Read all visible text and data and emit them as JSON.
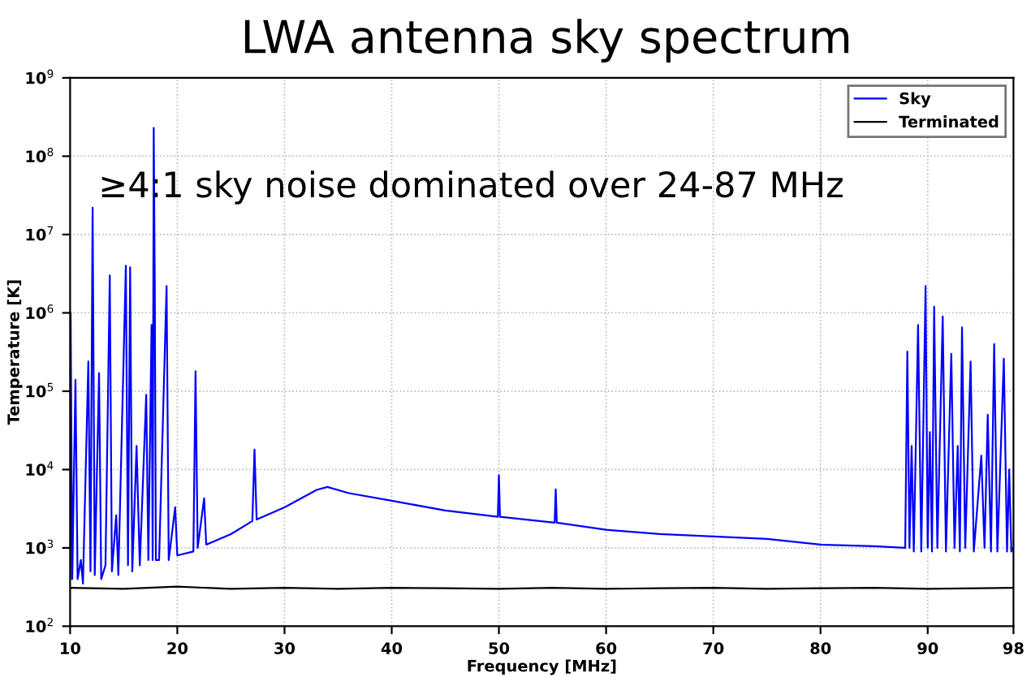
{
  "chart_data": {
    "type": "line",
    "title": "LWA antenna sky spectrum",
    "xlabel": "Frequency [MHz]",
    "ylabel": "Temperature [K]",
    "annotations": [
      "≥4:1 sky noise dominated over 24-87 MHz"
    ],
    "log": "y",
    "xlim": [
      10,
      98
    ],
    "xticks": [
      10,
      20,
      30,
      40,
      50,
      60,
      70,
      80,
      90,
      98
    ],
    "ylim": [
      100,
      1000000000
    ],
    "yticks": [
      {
        "value": 100,
        "label": "10$^{2}$"
      },
      {
        "value": 1000,
        "label": "10$^{3}$"
      },
      {
        "value": 10000,
        "label": "10$^{4}$"
      },
      {
        "value": 100000,
        "label": "10$^{5}$"
      },
      {
        "value": 1000000,
        "label": "10$^{6}$"
      },
      {
        "value": 10000000,
        "label": "10$^{7}$"
      },
      {
        "value": 100000000,
        "label": "10$^{8}$"
      },
      {
        "value": 1000000000,
        "label": "10$^{9}$"
      }
    ],
    "grid": true,
    "legend": "top right",
    "marker": "none",
    "line_style": "solid",
    "series": [
      {
        "name": "Sky",
        "color": "#0000ff",
        "x": [
          10,
          10.05,
          10.2,
          10.5,
          10.7,
          11,
          11.2,
          11.7,
          11.9,
          12.1,
          12.3,
          12.7,
          12.9,
          13.3,
          13.7,
          13.9,
          14.3,
          14.5,
          15.2,
          15.4,
          15.6,
          15.8,
          16.2,
          16.5,
          17.1,
          17.3,
          17.6,
          17.7,
          17.8,
          17.9,
          18.0,
          18.3,
          19.0,
          19.2,
          19.8,
          20,
          21.5,
          21.7,
          21.9,
          22.5,
          22.7,
          25,
          27,
          27.2,
          27.4,
          30,
          33,
          34,
          36,
          40,
          45,
          49.9,
          50,
          50.1,
          55.2,
          55.3,
          55.4,
          60,
          65,
          70,
          75,
          80,
          85,
          87.9,
          88.1,
          88.3,
          88.5,
          88.7,
          89.1,
          89.4,
          89.8,
          90.0,
          90.2,
          90.4,
          90.6,
          90.9,
          91.4,
          91.7,
          92.2,
          92.5,
          92.8,
          93.0,
          93.2,
          93.5,
          94.0,
          94.3,
          95.0,
          95.3,
          95.6,
          95.9,
          96.2,
          96.5,
          97.1,
          97.4,
          97.6,
          97.8,
          98
        ],
        "values": [
          400,
          1000000,
          400,
          140000,
          400,
          700,
          350,
          240000,
          500,
          22000000,
          450,
          170000,
          400,
          600,
          3000000,
          500,
          2600,
          450,
          4000000,
          600,
          3800000,
          500,
          20000,
          600,
          90000,
          700,
          700000,
          700,
          230000000,
          2000000,
          700,
          700,
          2200000,
          700,
          3300,
          800,
          900,
          180000,
          1000,
          4300,
          1100,
          1500,
          2200,
          18000,
          2300,
          3300,
          5500,
          6000,
          5000,
          4000,
          3000,
          2500,
          8500,
          2500,
          2100,
          5600,
          2100,
          1700,
          1500,
          1400,
          1300,
          1100,
          1050,
          1000,
          320000,
          1000,
          20000,
          900,
          700000,
          900,
          2200000,
          1000,
          30000,
          900,
          1200000,
          1000,
          900000,
          900,
          300000,
          1000,
          20000,
          900,
          650000,
          1000,
          240000,
          900,
          15000,
          1000,
          50000,
          900,
          400000,
          900,
          260000,
          900,
          10000,
          900,
          1000
        ]
      },
      {
        "name": "Terminated",
        "color": "#000000",
        "x": [
          10,
          15,
          20,
          25,
          30,
          35,
          40,
          45,
          50,
          55,
          60,
          65,
          70,
          75,
          80,
          85,
          90,
          95,
          98
        ],
        "values": [
          310,
          300,
          320,
          300,
          310,
          300,
          310,
          305,
          300,
          310,
          300,
          305,
          310,
          300,
          305,
          310,
          300,
          305,
          310
        ]
      }
    ]
  }
}
